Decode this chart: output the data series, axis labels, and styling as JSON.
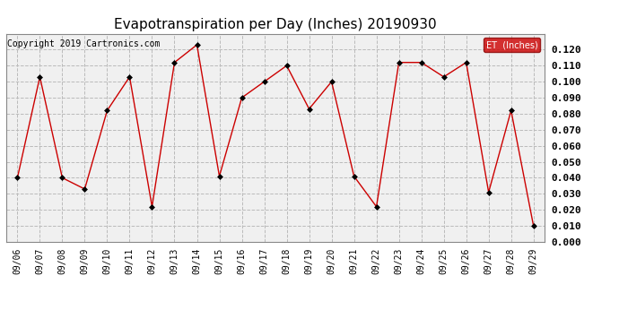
{
  "title": "Evapotranspiration per Day (Inches) 20190930",
  "copyright": "Copyright 2019 Cartronics.com",
  "legend_label": "ET  (Inches)",
  "legend_bg": "#cc0000",
  "legend_text_color": "#ffffff",
  "x_labels": [
    "09/06",
    "09/07",
    "09/08",
    "09/09",
    "09/10",
    "09/11",
    "09/12",
    "09/13",
    "09/14",
    "09/15",
    "09/16",
    "09/17",
    "09/18",
    "09/19",
    "09/20",
    "09/21",
    "09/22",
    "09/23",
    "09/24",
    "09/25",
    "09/26",
    "09/27",
    "09/28",
    "09/29"
  ],
  "y_values": [
    0.04,
    0.103,
    0.04,
    0.033,
    0.082,
    0.103,
    0.022,
    0.112,
    0.123,
    0.041,
    0.09,
    0.1,
    0.11,
    0.083,
    0.1,
    0.041,
    0.022,
    0.112,
    0.112,
    0.103,
    0.112,
    0.031,
    0.082,
    0.01
  ],
  "line_color": "#cc0000",
  "marker": "D",
  "marker_size": 3,
  "marker_color": "#000000",
  "ylim": [
    0.0,
    0.13
  ],
  "yticks": [
    0.0,
    0.01,
    0.02,
    0.03,
    0.04,
    0.05,
    0.06,
    0.07,
    0.08,
    0.09,
    0.1,
    0.11,
    0.12
  ],
  "grid_color": "#bbbbbb",
  "grid_style": "--",
  "bg_color": "#ffffff",
  "plot_bg_color": "#f0f0f0",
  "title_fontsize": 11,
  "copyright_fontsize": 7,
  "tick_fontsize": 7,
  "ytick_fontsize": 8
}
